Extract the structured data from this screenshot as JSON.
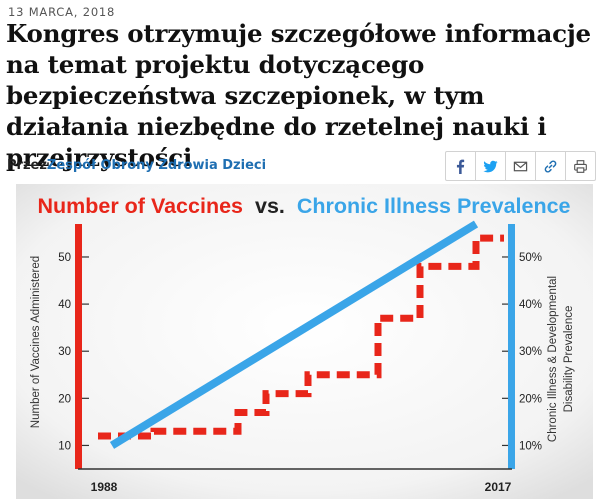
{
  "article": {
    "date": "13 MARCA, 2018",
    "title": "Kongres otrzymuje szczegółowe informacje na temat projektu dotyczącego bezpieczeństwa szczepionek, w tym działania niezbędne do rzetelnej nauki i przejrzystości",
    "byline_prefix": "Przez",
    "author": "Zespół Obrony Zdrowia Dzieci"
  },
  "share_icons": [
    "facebook-icon",
    "twitter-icon",
    "email-icon",
    "link-icon",
    "print-icon"
  ],
  "colors": {
    "accent_red": "#e8261a",
    "accent_blue": "#3aa5e8",
    "author_link": "#1f6fb2"
  },
  "chart_data": {
    "type": "line",
    "title_part1": "Number of Vaccines",
    "title_vs": "vs.",
    "title_part2": "Chronic Illness Prevalence",
    "ylabel_left": "Number of Vaccines Administered",
    "ylabel_right_line1": "Chronic Illness & Developmental",
    "ylabel_right_line2": "Disability Prevalence",
    "x_start_label": "1988",
    "x_end_label": "2017",
    "x_range": [
      1988,
      2017
    ],
    "y_left_range": [
      5,
      57
    ],
    "y_left_ticks": [
      "10",
      "20",
      "30",
      "40",
      "50"
    ],
    "y_left_tick_values": [
      10,
      20,
      30,
      40,
      50
    ],
    "y_right_ticks": [
      "10%",
      "20%",
      "30%",
      "40%",
      "50%"
    ],
    "y_right_tick_values": [
      10,
      20,
      30,
      40,
      50
    ],
    "series": [
      {
        "color": "#e8261a",
        "style": "dashed-step",
        "points": [
          [
            1988,
            12
          ],
          [
            1991,
            12
          ],
          [
            1992,
            13
          ],
          [
            1994,
            13
          ],
          [
            1995,
            13
          ],
          [
            1997,
            13
          ],
          [
            1998,
            17
          ],
          [
            1999,
            17
          ],
          [
            2000,
            21
          ],
          [
            2002,
            21
          ],
          [
            2003,
            25
          ],
          [
            2005,
            25
          ],
          [
            2007,
            25
          ],
          [
            2008,
            37
          ],
          [
            2010,
            37
          ],
          [
            2011,
            48
          ],
          [
            2013,
            48
          ],
          [
            2014,
            48
          ],
          [
            2015,
            54
          ],
          [
            2017,
            54
          ]
        ]
      },
      {
        "color": "#3aa5e8",
        "style": "solid",
        "points": [
          [
            1989,
            10
          ],
          [
            2015,
            57
          ]
        ]
      }
    ]
  }
}
